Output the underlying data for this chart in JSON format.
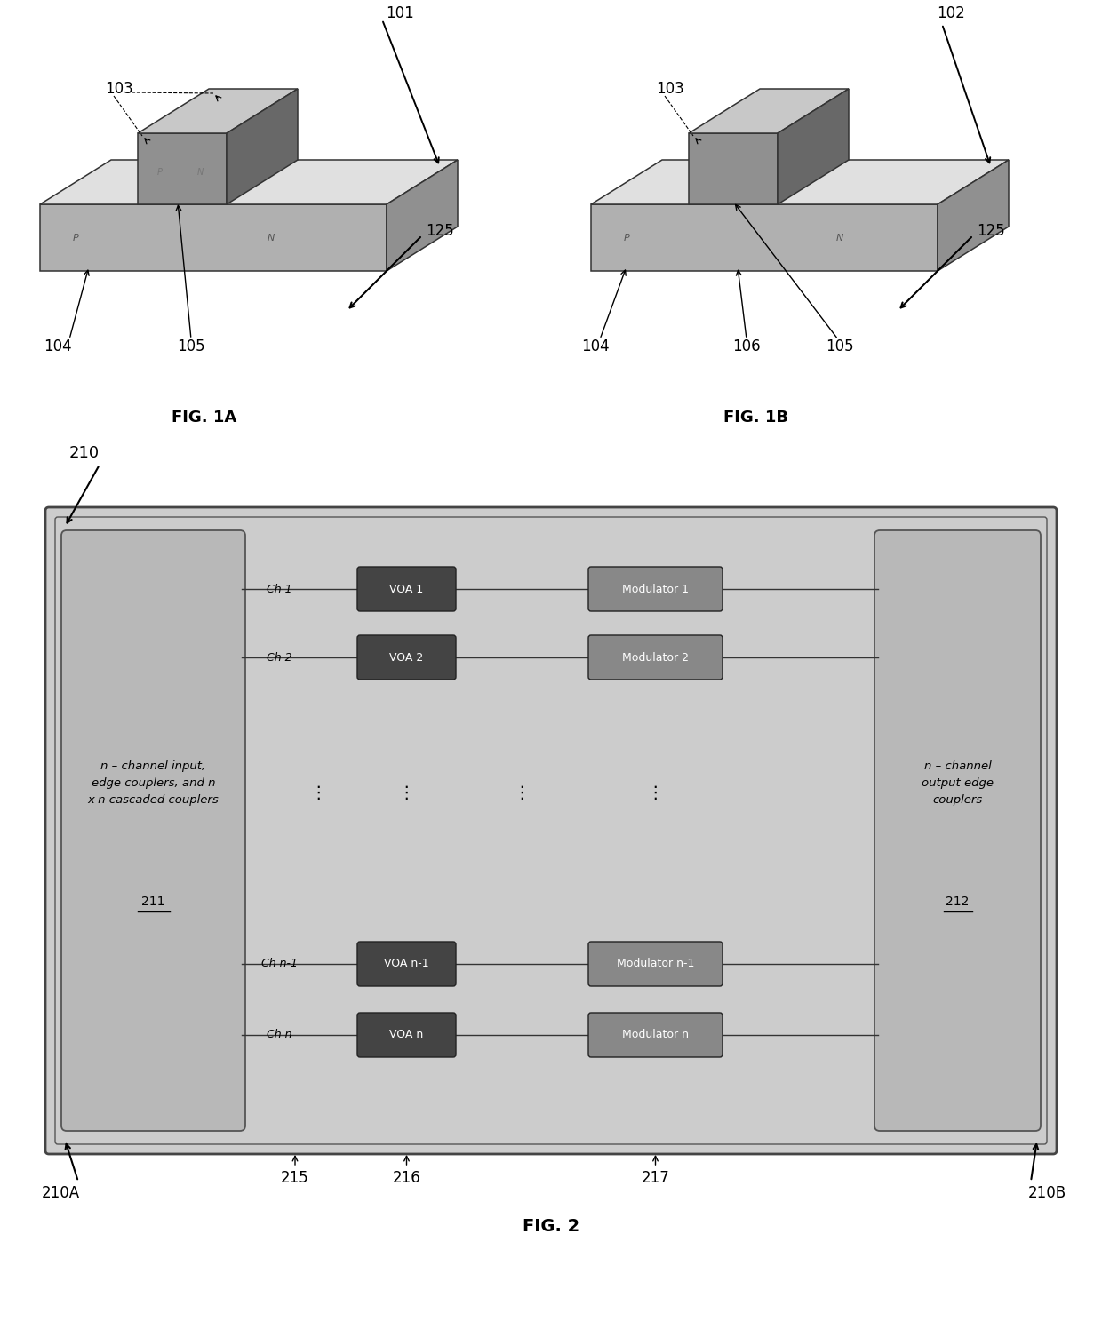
{
  "bg_color": "#ffffff",
  "fig_width": 12.4,
  "fig_height": 14.96,
  "dpi": 100,
  "fig1a_label": "FIG. 1A",
  "fig1b_label": "FIG. 1B",
  "fig2_label": "FIG. 2",
  "fig2_text_left": "n – channel input,\nedge couplers, and n\nx n cascaded couplers",
  "fig2_ref_left": "211",
  "fig2_text_right": "n – channel\noutput edge\ncouplers",
  "fig2_ref_right": "212",
  "voa_labels": [
    "VOA 1",
    "VOA 2",
    "VOA n-1",
    "VOA n"
  ],
  "mod_labels": [
    "Modulator 1",
    "Modulator 2",
    "Modulator n-1",
    "Modulator n"
  ],
  "ch_labels": [
    "Ch 1",
    "Ch 2",
    "Ch n-1",
    "Ch n"
  ],
  "ref_215": "215",
  "ref_216": "216",
  "ref_217": "217",
  "ref_210": "210",
  "ref_210A": "210A",
  "ref_210B": "210B",
  "base_face_color": "#b0b0b0",
  "base_top_color": "#e0e0e0",
  "base_side_color": "#909090",
  "rib_face_color": "#909090",
  "rib_top_color": "#c8c8c8",
  "rib_side_color": "#686868",
  "outer_bg": "#cccccc",
  "left_block_color": "#b8b8b8",
  "right_block_color": "#b8b8b8",
  "voa_color": "#444444",
  "mod_color": "#888888"
}
